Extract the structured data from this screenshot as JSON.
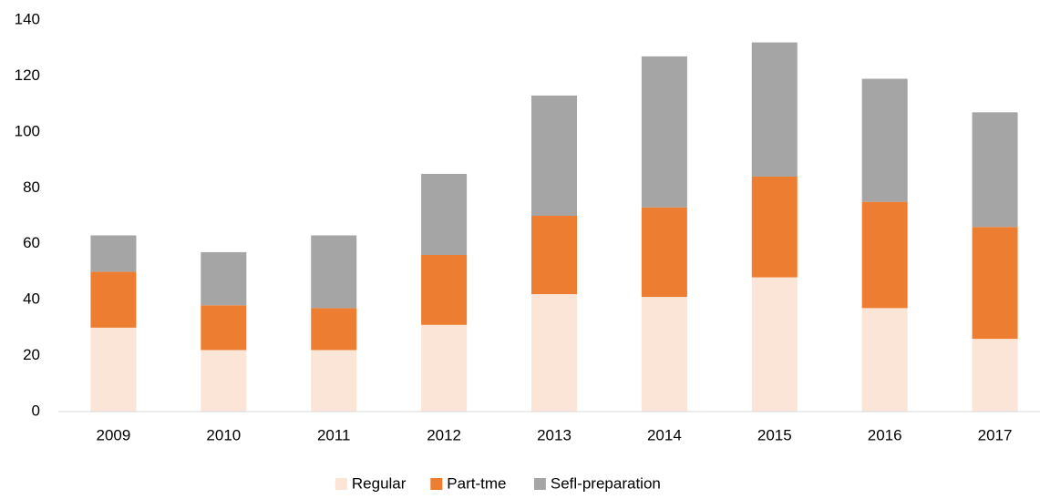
{
  "chart_data": {
    "type": "stacked_bar",
    "categories": [
      "2009",
      "2010",
      "2011",
      "2012",
      "2013",
      "2014",
      "2015",
      "2016",
      "2017"
    ],
    "series": [
      {
        "name": "Regular",
        "color": "#fbe5d6",
        "values": [
          30,
          22,
          22,
          31,
          42,
          41,
          48,
          37,
          26
        ]
      },
      {
        "name": "Part-tme",
        "color": "#ed7d31",
        "values": [
          20,
          16,
          15,
          25,
          28,
          32,
          36,
          38,
          40
        ]
      },
      {
        "name": "Sefl-preparation",
        "color": "#a5a5a5",
        "values": [
          13,
          19,
          26,
          29,
          43,
          54,
          48,
          44,
          41
        ]
      }
    ],
    "ylim": [
      0,
      140
    ],
    "yticks": [
      0,
      20,
      40,
      60,
      80,
      100,
      120,
      140
    ],
    "grid": false,
    "legend": "bottom"
  }
}
